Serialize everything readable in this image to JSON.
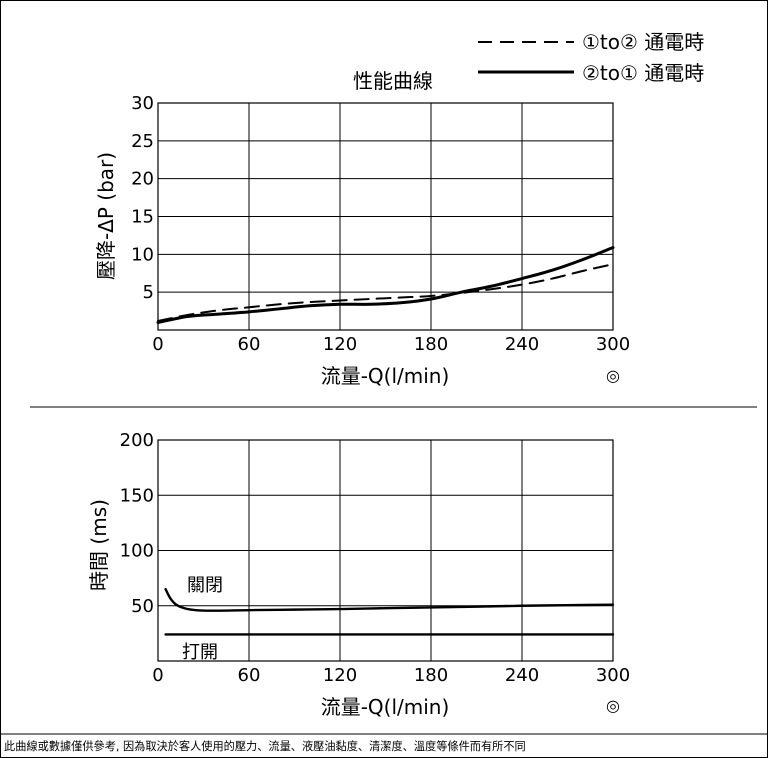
{
  "chart_data": [
    {
      "type": "line",
      "title": "性能曲線",
      "xlabel": "流量-Q(l/min)",
      "ylabel": "壓降-ΔP (bar)",
      "xlim": [
        0,
        300
      ],
      "ylim": [
        0,
        30
      ],
      "xticks": [
        "0",
        "60",
        "120",
        "180",
        "240",
        "300"
      ],
      "yticks": [
        "5",
        "10",
        "15",
        "20",
        "25",
        "30"
      ],
      "grid": true,
      "legend_position": "top-right",
      "corner_symbol": "◎",
      "series": [
        {
          "name": "①to② 通電時",
          "style": "dashed",
          "x": [
            0,
            20,
            40,
            60,
            80,
            100,
            120,
            140,
            160,
            180,
            200,
            220,
            240,
            260,
            280,
            300
          ],
          "y": [
            1.2,
            2.0,
            2.6,
            3.0,
            3.4,
            3.7,
            3.9,
            4.1,
            4.3,
            4.5,
            4.9,
            5.4,
            6.0,
            6.8,
            7.8,
            8.7
          ]
        },
        {
          "name": "②to① 通電時",
          "style": "solid",
          "x": [
            0,
            20,
            40,
            60,
            80,
            100,
            120,
            140,
            160,
            180,
            200,
            220,
            240,
            260,
            280,
            300
          ],
          "y": [
            1.0,
            1.8,
            2.1,
            2.4,
            2.8,
            3.2,
            3.4,
            3.4,
            3.6,
            4.1,
            5.0,
            5.8,
            6.8,
            7.9,
            9.3,
            10.9
          ]
        }
      ]
    },
    {
      "type": "line",
      "xlabel": "流量-Q(l/min)",
      "ylabel": "時間 (ms)",
      "xlim": [
        0,
        300
      ],
      "ylim": [
        0,
        200
      ],
      "xticks": [
        "0",
        "60",
        "120",
        "180",
        "240",
        "300"
      ],
      "yticks": [
        "50",
        "100",
        "150",
        "200"
      ],
      "grid": true,
      "corner_symbol": "◎",
      "series": [
        {
          "name": "關閉",
          "style": "solid",
          "x": [
            5,
            8,
            12,
            18,
            25,
            35,
            60,
            90,
            120,
            150,
            180,
            210,
            240,
            270,
            300
          ],
          "y": [
            65,
            57,
            51,
            47.5,
            46,
            45.5,
            46,
            46.5,
            47,
            47.8,
            48.5,
            49.2,
            50,
            50.5,
            51
          ]
        },
        {
          "name": "打開",
          "style": "solid",
          "x": [
            5,
            300
          ],
          "y": [
            24,
            24
          ]
        }
      ]
    }
  ],
  "footer": {
    "disclaimer": "此曲線或數據僅供參考, 因為取決於客人使用的壓力、流量、液壓油黏度、清潔度、溫度等條件而有所不同"
  }
}
